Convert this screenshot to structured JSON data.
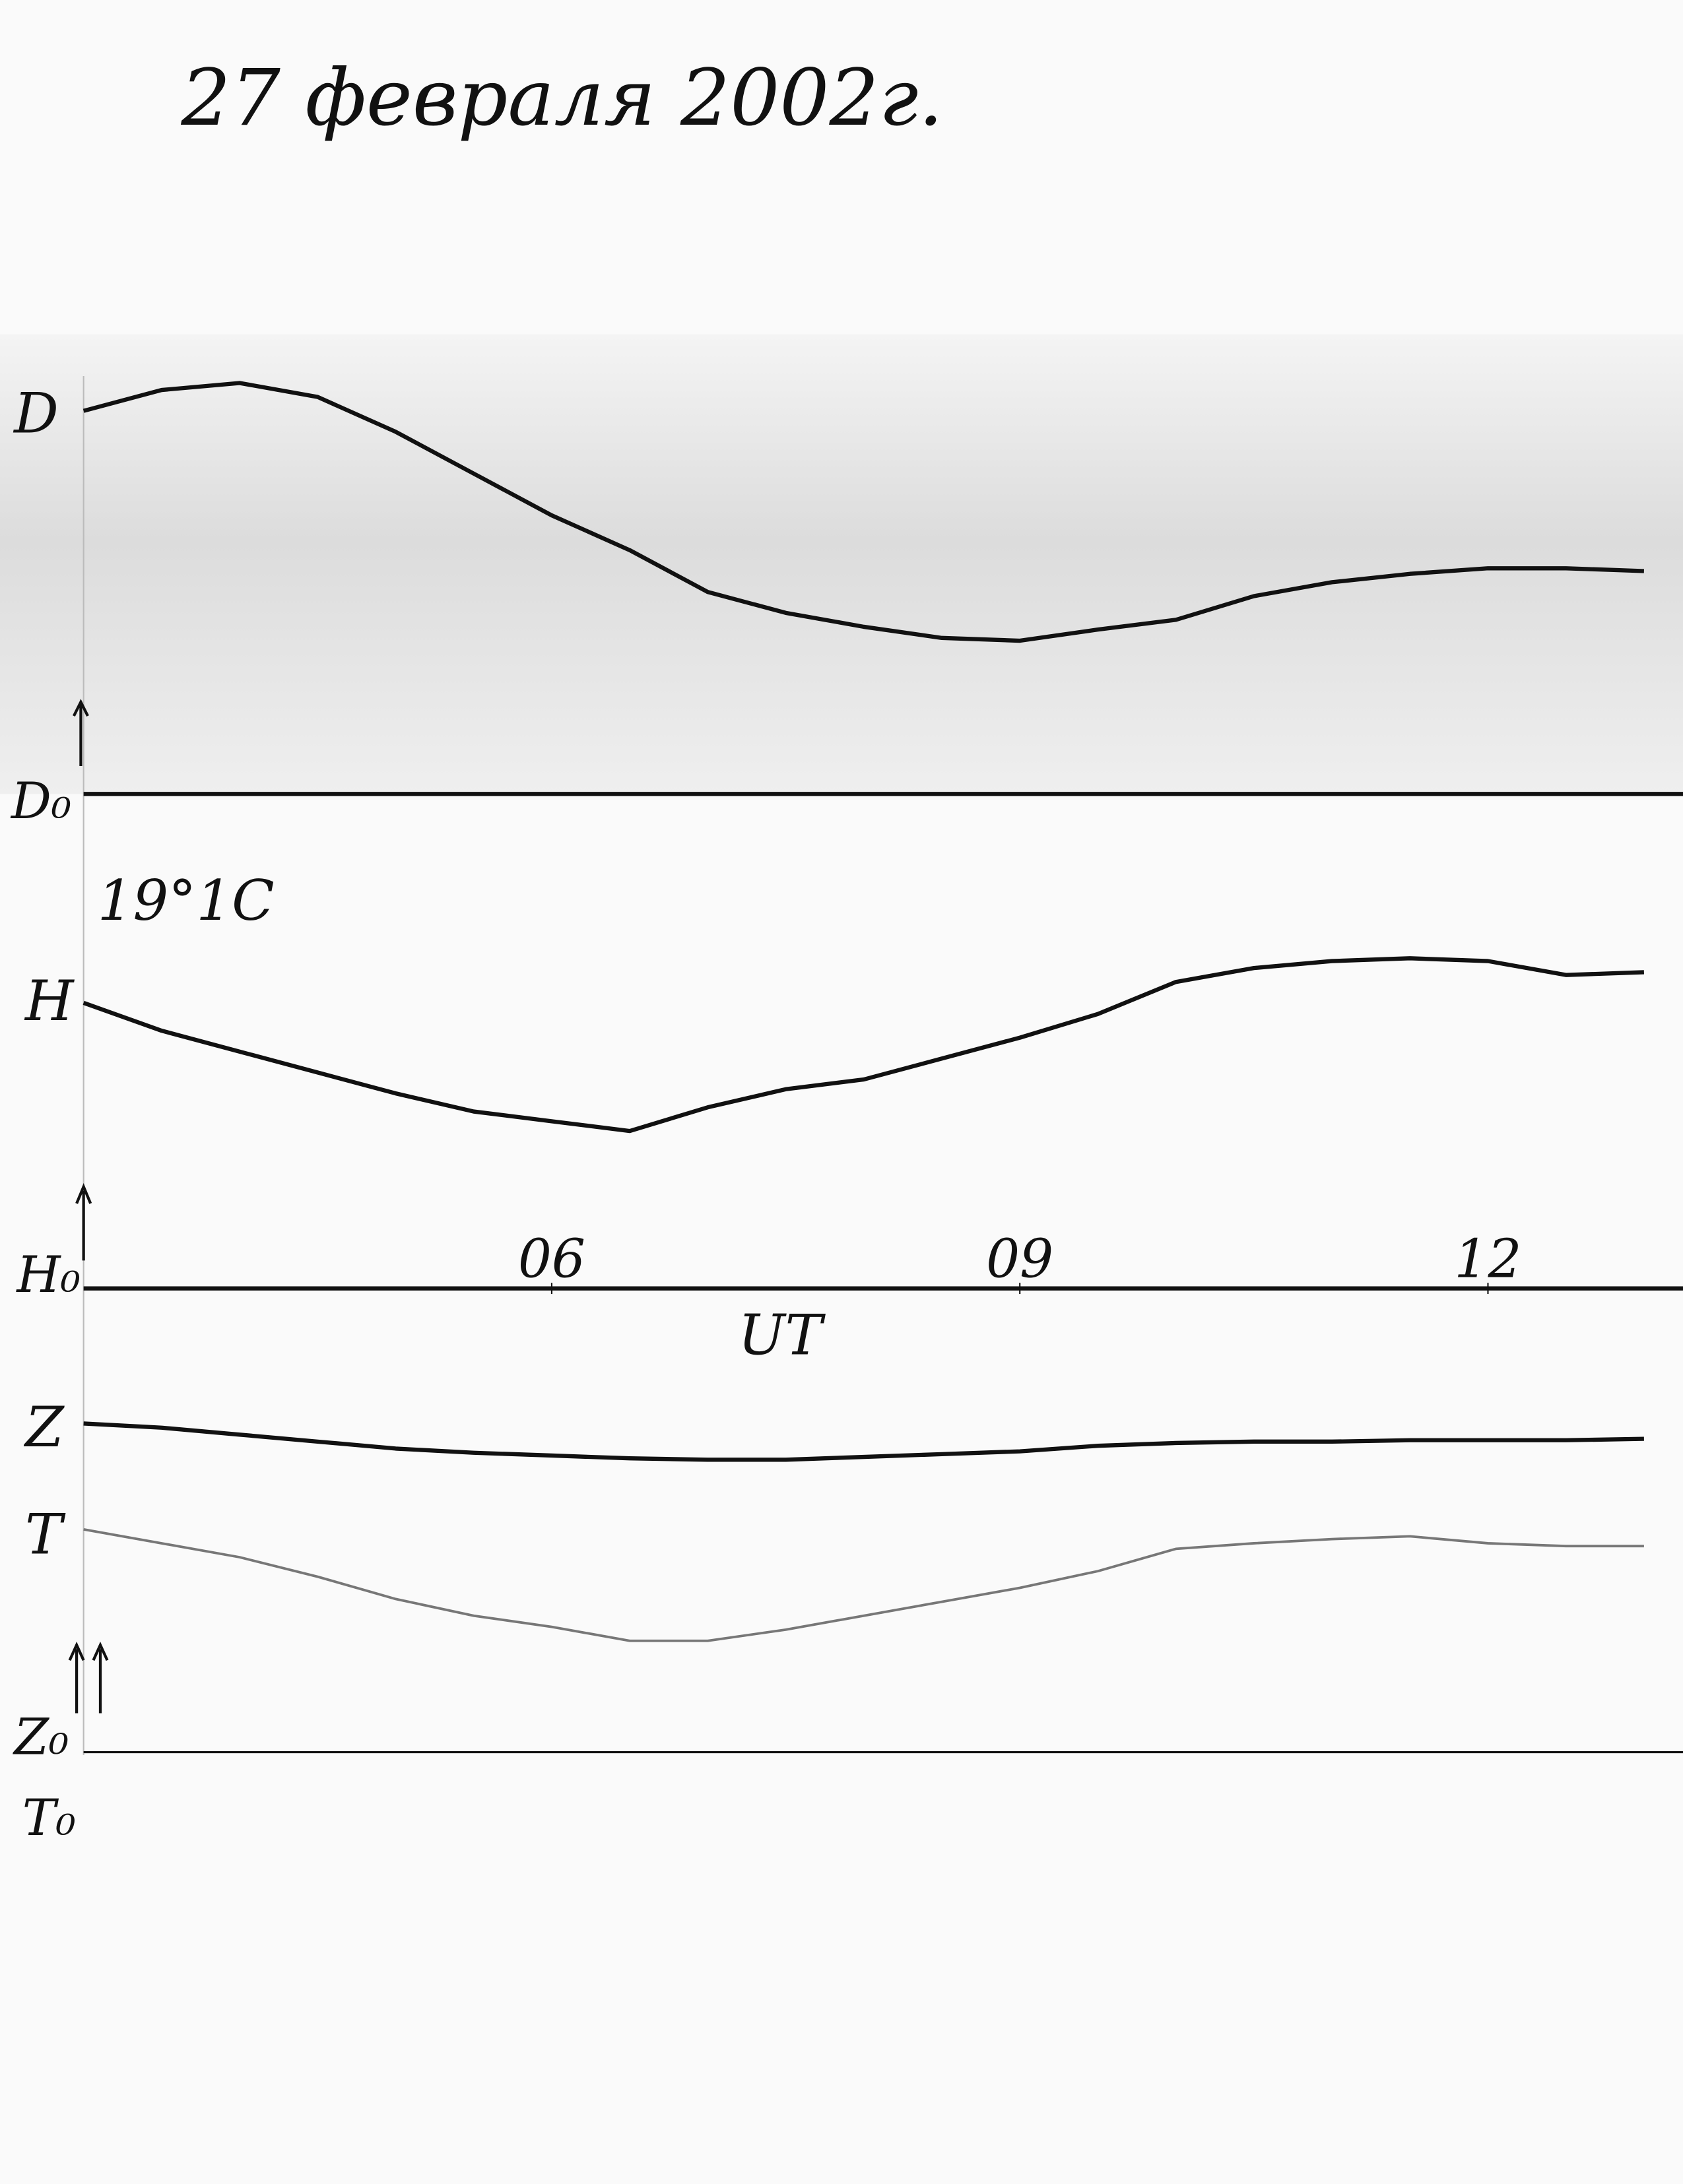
{
  "chart_data": {
    "type": "line",
    "title": "27 февраля 2002г.",
    "annotation": "19°1C",
    "xlabel": "UT",
    "baseline_labels": [
      "D₀",
      "H₀",
      "Z₀",
      "T₀"
    ],
    "x": [
      3,
      3.5,
      4,
      4.5,
      5,
      5.5,
      6,
      6.5,
      7,
      7.5,
      8,
      8.5,
      9,
      9.5,
      10,
      10.5,
      11,
      11.5,
      12,
      12.5,
      13
    ],
    "xlim": [
      3,
      13.25
    ],
    "xticks": [
      {
        "value": 6,
        "label": "06"
      },
      {
        "value": 9,
        "label": "09"
      },
      {
        "value": 12,
        "label": "12"
      }
    ],
    "series": [
      {
        "name": "D",
        "color": "#111111",
        "values": [
          275,
          290,
          295,
          285,
          260,
          230,
          200,
          175,
          145,
          130,
          120,
          112,
          110,
          118,
          125,
          142,
          152,
          158,
          162,
          162,
          160
        ]
      },
      {
        "name": "H",
        "color": "#111111",
        "values": [
          205,
          185,
          170,
          155,
          140,
          127,
          120,
          113,
          130,
          143,
          150,
          165,
          180,
          197,
          220,
          230,
          235,
          237,
          235,
          225,
          227
        ]
      },
      {
        "name": "Z",
        "color": "#111111",
        "values": [
          236,
          233,
          228,
          223,
          218,
          215,
          213,
          211,
          210,
          210,
          212,
          214,
          216,
          220,
          222,
          223,
          223,
          224,
          224,
          224,
          225
        ]
      },
      {
        "name": "T",
        "color": "#777777",
        "values": [
          160,
          150,
          140,
          126,
          110,
          98,
          90,
          80,
          80,
          88,
          98,
          108,
          118,
          130,
          146,
          150,
          153,
          155,
          150,
          148,
          148
        ]
      }
    ]
  }
}
